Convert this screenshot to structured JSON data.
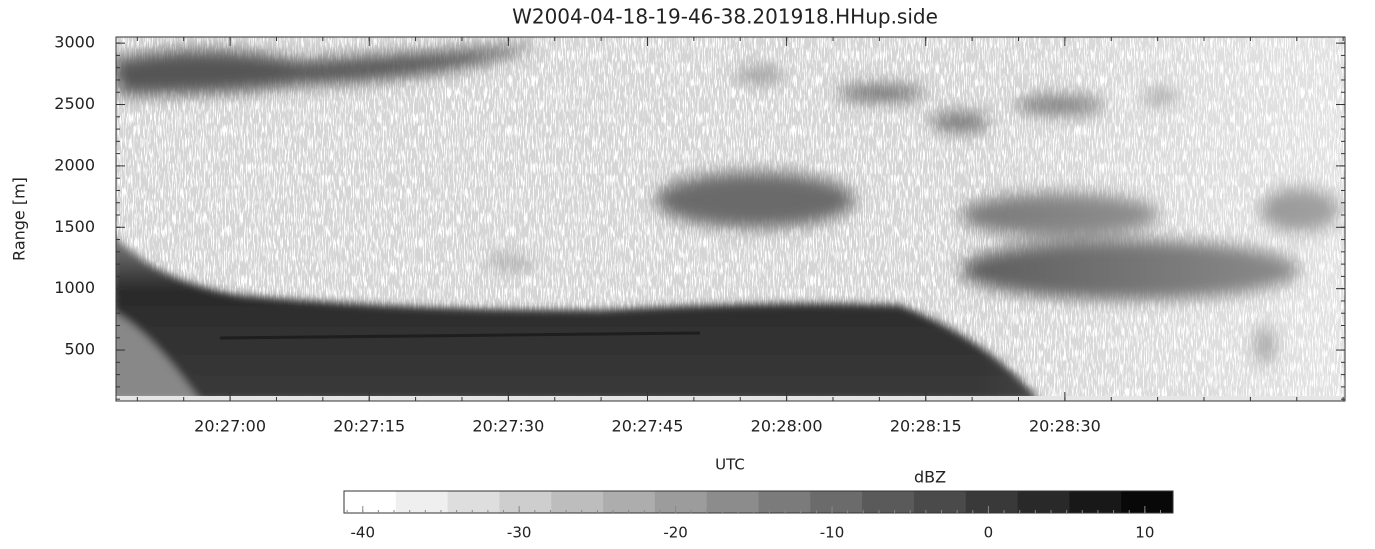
{
  "chart_data": {
    "type": "radar-time-height",
    "title": "W2004-04-18-19-46-38.201918.HHup.side",
    "x_label": "UTC",
    "y_label": "Range [m]",
    "xlim": [
      74807.7,
      74940.2
    ],
    "xticks": [
      {
        "value": 74820,
        "label": "20:27:00"
      },
      {
        "value": 74835,
        "label": "20:27:15"
      },
      {
        "value": 74850,
        "label": "20:27:30"
      },
      {
        "value": 74865,
        "label": "20:27:45"
      },
      {
        "value": 74880,
        "label": "20:28:00"
      },
      {
        "value": 74895,
        "label": "20:28:15"
      },
      {
        "value": 74910,
        "label": "20:28:30"
      }
    ],
    "ylim": [
      85,
      3050
    ],
    "yticks": [
      500,
      1000,
      1500,
      2000,
      2500,
      3000
    ],
    "colorbar": {
      "label": "dBZ",
      "lim": [
        -41.2,
        11.8
      ],
      "ticks": [
        -40,
        -30,
        -20,
        -10,
        0,
        10
      ],
      "colors": [
        "#ffffff",
        "#efefef",
        "#dedede",
        "#cecece",
        "#bdbdbd",
        "#adadad",
        "#9c9c9c",
        "#8c8c8c",
        "#7b7b7b",
        "#6b6b6b",
        "#5a5a5a",
        "#4a4a4a",
        "#393939",
        "#292929",
        "#181818",
        "#080808"
      ]
    }
  }
}
